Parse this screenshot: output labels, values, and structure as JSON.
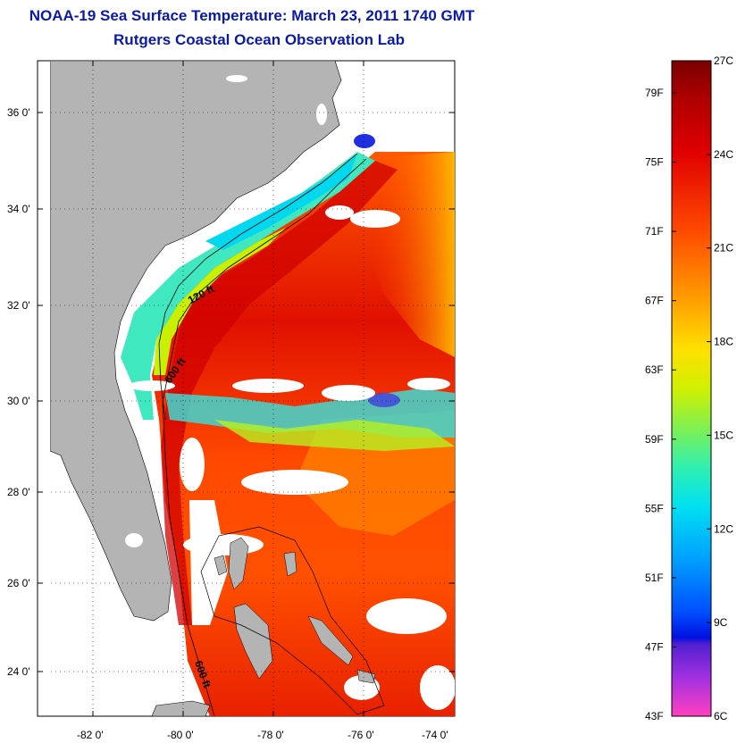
{
  "title": "NOAA-19 Sea Surface Temperature:  March 23, 2011 1740 GMT",
  "subtitle": "Rutgers Coastal Ocean Observation Lab",
  "map": {
    "lon_ticks": [
      "-82 0'",
      "-80 0'",
      "-78 0'",
      "-76 0'",
      "-74 0'"
    ],
    "lat_ticks": [
      "36 0'",
      "34 0'",
      "32 0'",
      "30 0'",
      "28 0'",
      "26 0'",
      "24 0'"
    ],
    "contour_labels": [
      "120 ft",
      "600 ft",
      "600 ft"
    ],
    "land_color": "#b4b4b4",
    "cloud_color": "#ffffff"
  },
  "colorbar": {
    "fahrenheit_ticks": [
      "79F",
      "75F",
      "71F",
      "67F",
      "63F",
      "59F",
      "55F",
      "51F",
      "47F",
      "43F"
    ],
    "celsius_ticks": [
      "27C",
      "24C",
      "21C",
      "18C",
      "15C",
      "12C",
      "9C",
      "6C"
    ],
    "colors": [
      "#7a0000",
      "#cc0000",
      "#ff2a00",
      "#ff7a00",
      "#ffd000",
      "#e8f000",
      "#9ef040",
      "#40f0a0",
      "#00e8f0",
      "#00a0ff",
      "#0040ff",
      "#0010d0",
      "#7a30e0",
      "#c040f0",
      "#ff40d0"
    ]
  }
}
